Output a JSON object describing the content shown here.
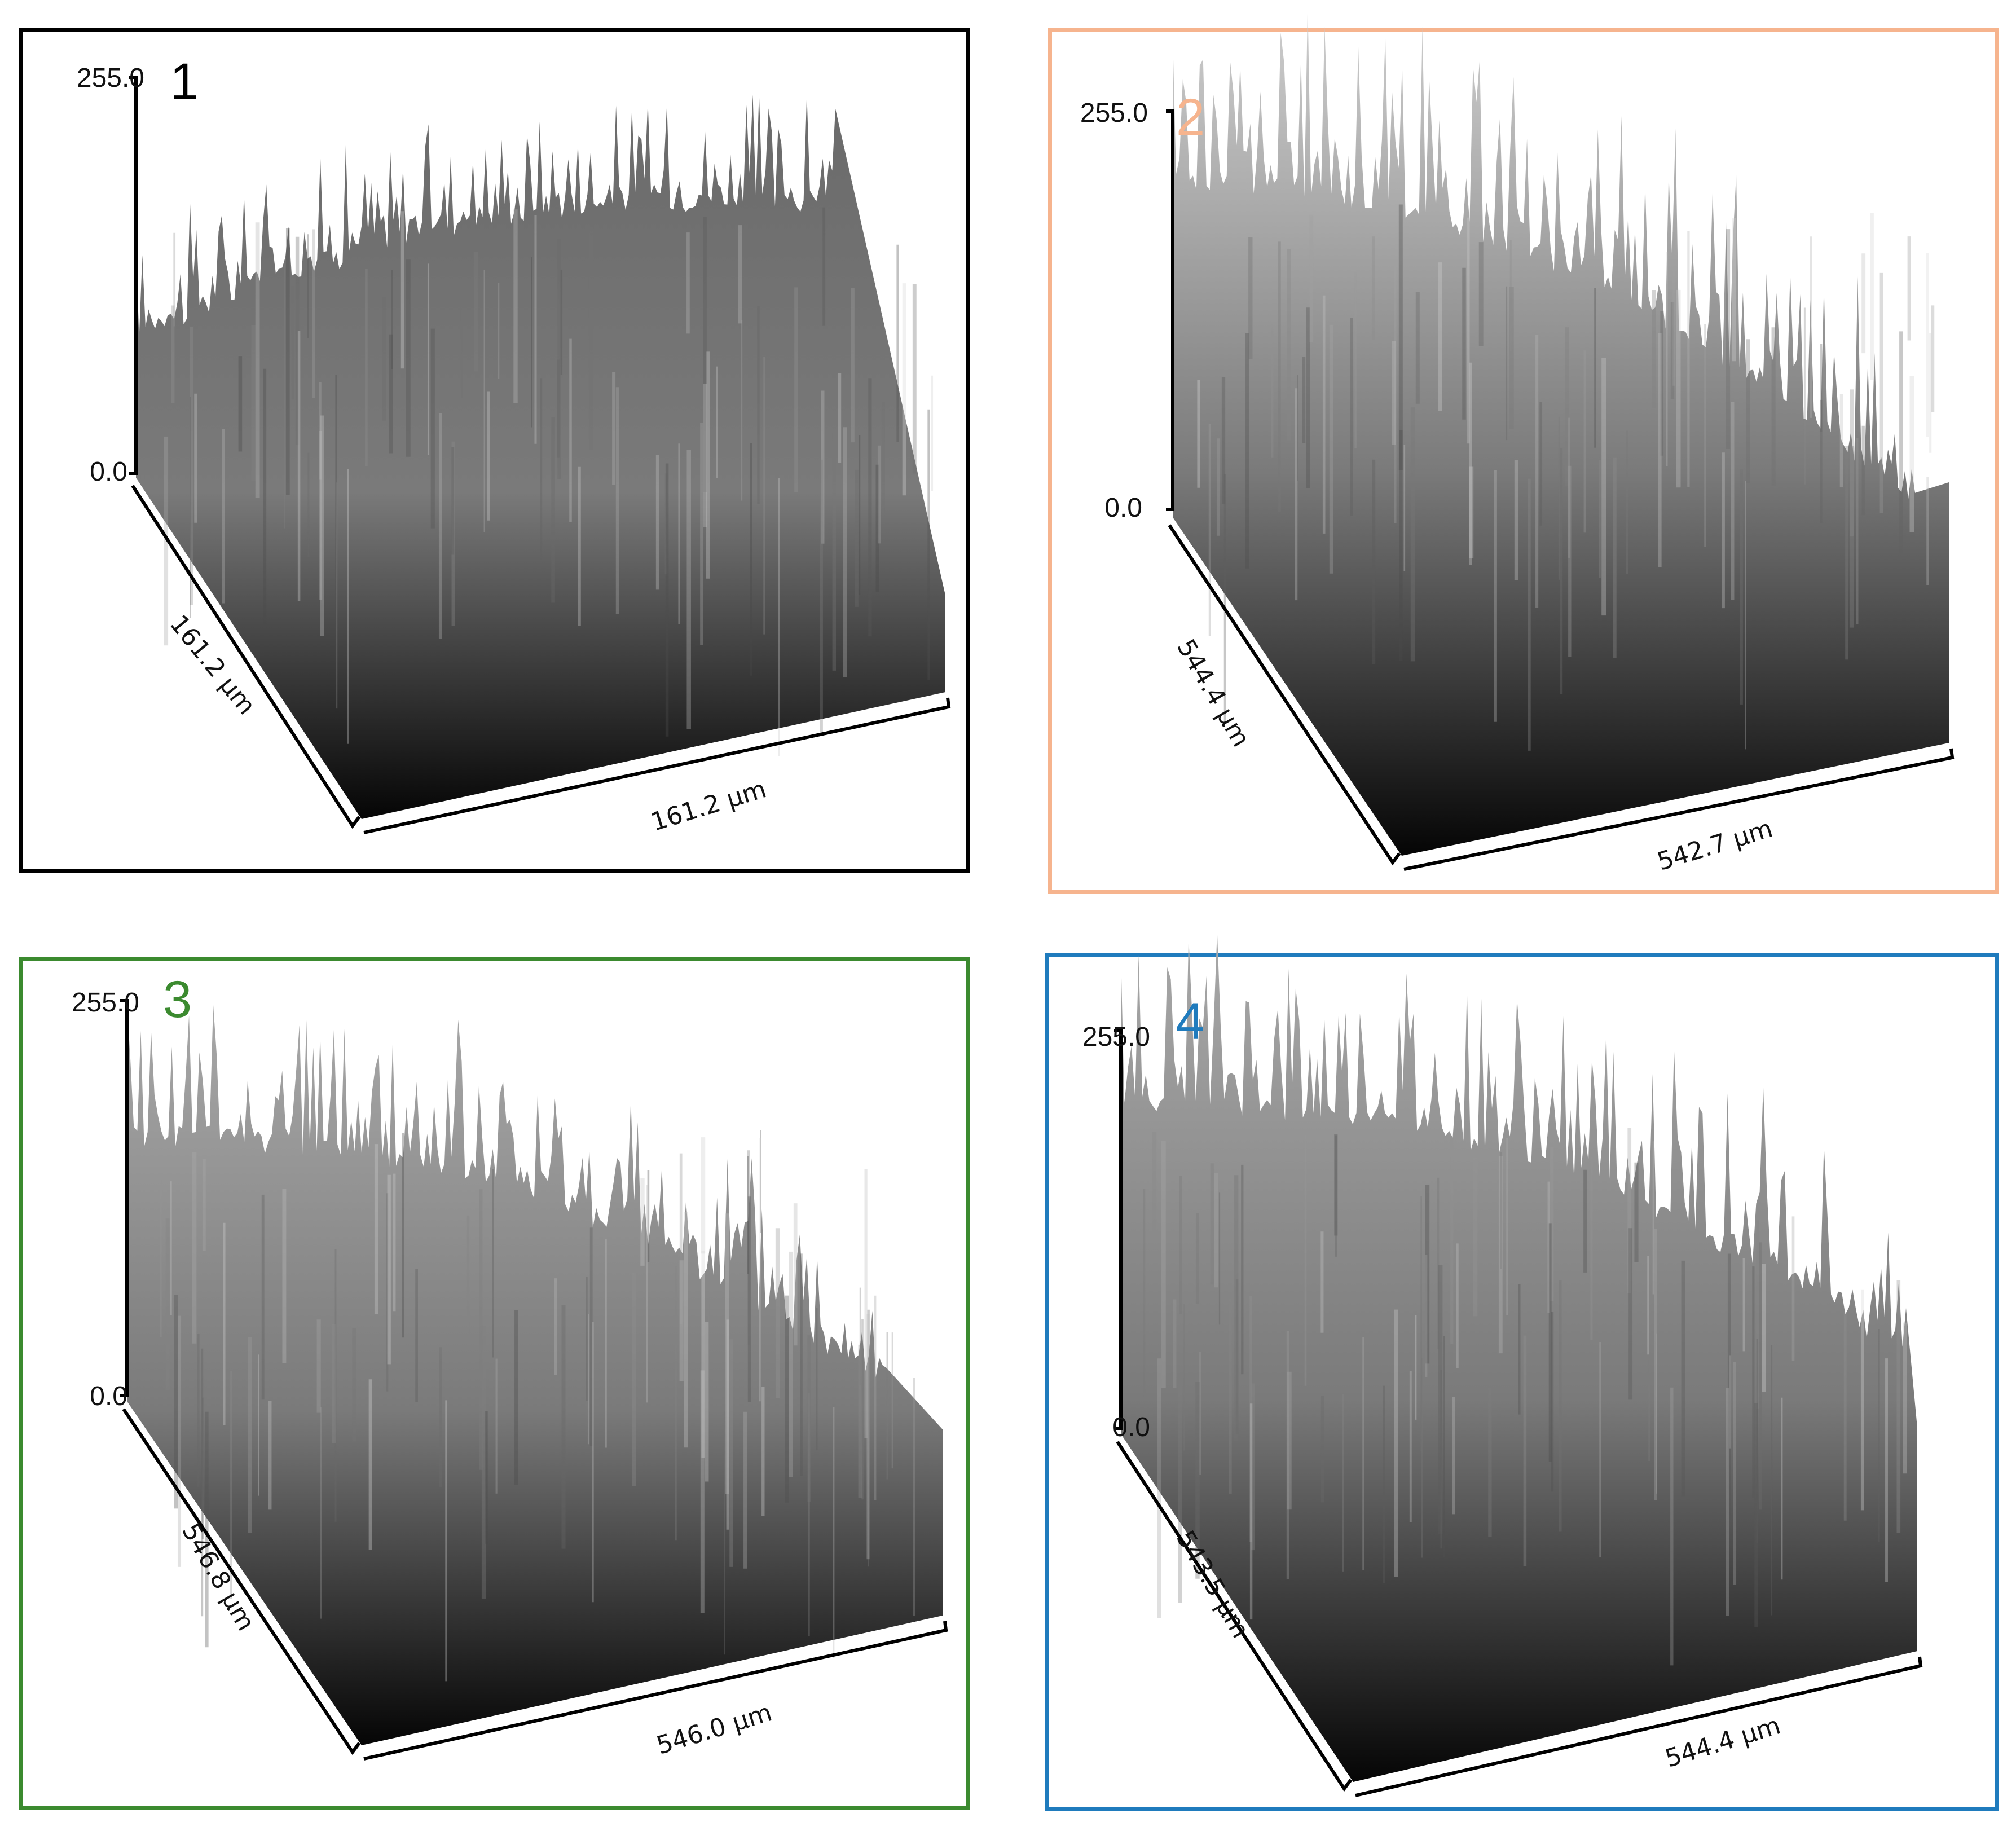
{
  "panels": [
    {
      "number": "1",
      "color": "#111111",
      "z_max": "255.0",
      "z_min": "0.0",
      "y_extent": "161.2 µm",
      "x_extent": "161.2 µm",
      "surface_shading": "dark"
    },
    {
      "number": "2",
      "color": "#f6b48e",
      "z_max": "255.0",
      "z_min": "0.0",
      "y_extent": "544.4 µm",
      "x_extent": "542.7 µm",
      "surface_shading": "light"
    },
    {
      "number": "3",
      "color": "#3b8a2f",
      "z_max": "255.0",
      "z_min": "0.0",
      "y_extent": "546.8 µm",
      "x_extent": "546.0 µm",
      "surface_shading": "mixed"
    },
    {
      "number": "4",
      "color": "#1f7bbd",
      "z_max": "255.0",
      "z_min": "0.0",
      "y_extent": "543.5 µm",
      "x_extent": "544.4 µm",
      "surface_shading": "high-contrast"
    }
  ]
}
